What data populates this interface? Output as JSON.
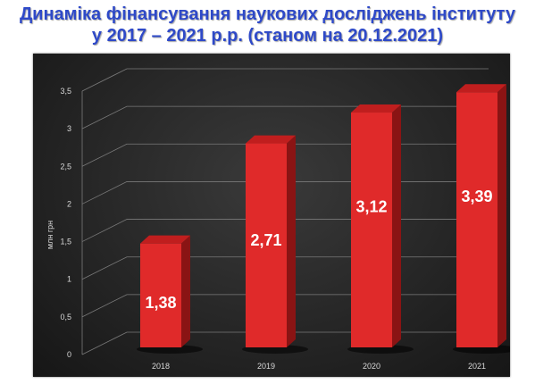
{
  "title": {
    "line1": "Динаміка фінансування наукових досліджень інституту",
    "line2": "у 2017 – 2021 р.р. (станом на 20.12.2021)"
  },
  "colors": {
    "title": "#2e49c8",
    "bar_front": "#e02a2a",
    "bar_side": "#8a1414",
    "bar_top": "#c01e1e",
    "background": "#2a2a2a"
  },
  "chart_data": {
    "type": "bar",
    "categories": [
      "2018",
      "2019",
      "2020",
      "2021"
    ],
    "values": [
      1.38,
      2.71,
      3.12,
      3.39
    ],
    "data_labels": [
      "1,38",
      "2,71",
      "3,12",
      "3,39"
    ],
    "ylabel": "млн грн",
    "ylim": [
      0,
      3.5
    ],
    "yticks": [
      {
        "value": 0,
        "label": "0"
      },
      {
        "value": 0.5,
        "label": "0,5"
      },
      {
        "value": 1,
        "label": "1"
      },
      {
        "value": 1.5,
        "label": "1,5"
      },
      {
        "value": 2,
        "label": "2"
      },
      {
        "value": 2.5,
        "label": "2,5"
      },
      {
        "value": 3,
        "label": "3"
      },
      {
        "value": 3.5,
        "label": "3,5"
      }
    ],
    "grid": true,
    "style": "3d"
  }
}
